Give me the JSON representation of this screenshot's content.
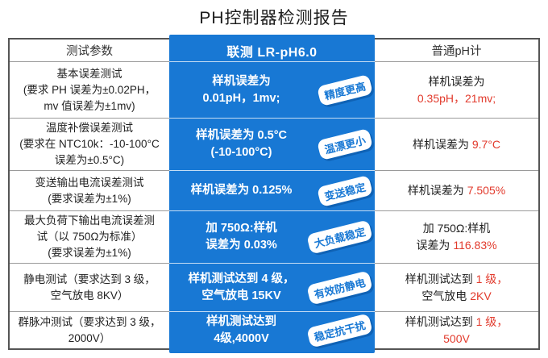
{
  "title": "PH控制器检测报告",
  "colors": {
    "accent_blue": "#1878d4",
    "alert_red": "#e23a2c"
  },
  "table": {
    "headers": [
      "测试参数",
      "联测 LR-pH6.0",
      "普通pH计"
    ],
    "rows": [
      {
        "param": "基本误差测试\n(要求 PH 误差为±0.02PH，\nmv 值误差为±1mv)",
        "sample": "样机误差为\n0.01pH，1mv;",
        "badge": "精度更高",
        "ordinary": [
          [
            {
              "t": "样机误差为"
            }
          ],
          [
            {
              "t": "0.35pH，21mv;",
              "red": true
            }
          ]
        ]
      },
      {
        "param": "温度补偿误差测试\n(要求在 NTC10k：-10-100°C\n误差为±0.5°C)",
        "sample": "样机误差为 0.5°C\n(-10-100°C)",
        "badge": "温漂更小",
        "ordinary": [
          [
            {
              "t": "样机误差为 "
            },
            {
              "t": "9.7°C",
              "red": true
            }
          ]
        ]
      },
      {
        "param": "变送输出电流误差测试\n(要求误差为±1%)",
        "sample": "样机误差为 0.125%",
        "badge": "变送稳定",
        "ordinary": [
          [
            {
              "t": "样机误差为 "
            },
            {
              "t": "7.505%",
              "red": true
            }
          ]
        ]
      },
      {
        "param": "最大负荷下输出电流误差测\n试（以 750Ω为标准）\n(要求误差为±1%)",
        "sample": "加 750Ω:样机\n误差为 0.03%",
        "badge": "大负载稳定",
        "ordinary": [
          [
            {
              "t": "加 750Ω:样机"
            }
          ],
          [
            {
              "t": "误差为 "
            },
            {
              "t": "116.83%",
              "red": true
            }
          ]
        ]
      },
      {
        "param": "静电测试（要求达到 3 级，\n空气放电 8KV）",
        "sample": "样机测试达到 4 级，\n空气放电 15KV",
        "badge": "有效防静电",
        "ordinary": [
          [
            {
              "t": "样机测试达到 "
            },
            {
              "t": "1 级，",
              "red": true
            }
          ],
          [
            {
              "t": "空气放电 "
            },
            {
              "t": "2KV",
              "red": true
            }
          ]
        ]
      },
      {
        "param": "群脉冲测试（要求达到 3 级，\n2000V）",
        "sample": "样机测试达到\n4级,4000V",
        "badge": "稳定抗干扰",
        "ordinary": [
          [
            {
              "t": "样机测试达到 "
            },
            {
              "t": "1 级，",
              "red": true
            }
          ],
          [
            {
              "t": "500V",
              "red": true
            }
          ]
        ]
      }
    ]
  }
}
